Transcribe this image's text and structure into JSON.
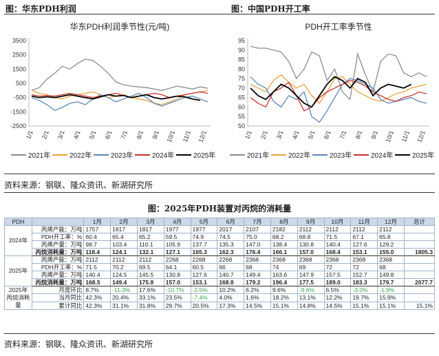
{
  "left_figure": {
    "title": "图：华东PDH利润",
    "source": "资料来源：钢联、隆众资讯、新湖研究所"
  },
  "right_figure": {
    "title": "图：中国PDH开工率"
  },
  "table_title": "图：2025年PDH装置对丙烷的消耗量",
  "bottom_source": "资料来源：钢联、隆众资讯、新湖研究所",
  "colors": {
    "y2021": "#8c8c8c",
    "y2022": "#e8a33a",
    "y2023": "#5b85b8",
    "y2024": "#c8302c",
    "y2025": "#000000"
  },
  "chart_data": [
    {
      "type": "line",
      "title": "华东PDH利润季节性(元/吨)",
      "ylim": [
        -2500,
        3500
      ],
      "yticks": [
        "3500",
        "2500",
        "1500",
        "500",
        "-500",
        "-1500",
        "-2500"
      ],
      "xticks": [
        "1/1",
        "2/1",
        "3/1",
        "4/1",
        "5/1",
        "6/1",
        "7/1",
        "8/1",
        "9/1",
        "10/1",
        "11/1",
        "12/1"
      ],
      "legend": [
        "2021年",
        "2022年",
        "2023年",
        "2024年",
        "2025年"
      ],
      "series": [
        {
          "name": "2021年",
          "values": [
            0,
            200,
            800,
            1200,
            1700,
            1500,
            1900,
            2200,
            2100,
            1700,
            1200,
            600,
            400,
            300,
            250,
            200,
            100,
            0,
            150,
            300,
            200,
            100,
            250,
            150
          ]
        },
        {
          "name": "2022年",
          "values": [
            0,
            -200,
            -300,
            -500,
            -600,
            -400,
            -300,
            -200,
            -100,
            -300,
            -500,
            -400,
            -300,
            -500,
            -600,
            -700,
            -900,
            -1000,
            -800,
            -600,
            -300,
            -200,
            -100,
            0
          ]
        },
        {
          "name": "2023年",
          "values": [
            -500,
            -700,
            -1000,
            -1400,
            -1200,
            -900,
            -800,
            -1000,
            -600,
            -300,
            -500,
            -800,
            -600,
            -400,
            -200,
            -500,
            -900,
            -1100,
            -900,
            -700,
            -500,
            -400,
            -600,
            -800
          ]
        },
        {
          "name": "2024年",
          "values": [
            -300,
            -400,
            -350,
            -400,
            -300,
            -200,
            -300,
            -400,
            -500,
            -400,
            -300,
            -200,
            -350,
            -500,
            -400,
            -300,
            -200,
            -300,
            -500,
            -400,
            -300,
            -200,
            -100,
            -200
          ]
        },
        {
          "name": "2025年",
          "values": [
            -400,
            -500,
            -450,
            -500,
            -400,
            -300,
            -400,
            -500,
            -600,
            -450,
            -300,
            -400,
            -350,
            -500,
            -400,
            -300,
            -500,
            -600,
            -500,
            -400,
            -450,
            -600,
            -700,
            null
          ]
        }
      ]
    },
    {
      "type": "line",
      "title": "PDH开工率季节性",
      "ylim": [
        50,
        95
      ],
      "yticks": [
        "95",
        "90",
        "85",
        "80",
        "75",
        "70",
        "65",
        "60",
        "55",
        "50"
      ],
      "xticks": [
        "1/1",
        "2/1",
        "3/1",
        "4/1",
        "5/1",
        "6/1",
        "7/1",
        "8/1",
        "9/1",
        "10/1",
        "11/1",
        "12/1"
      ],
      "legend": [
        "2021年",
        "2022年",
        "2023年",
        "2024年",
        "2025年"
      ],
      "series": [
        {
          "name": "2021年",
          "values": [
            92,
            91,
            91,
            90,
            89,
            84,
            75,
            80,
            89,
            87,
            74,
            80,
            68,
            64,
            88,
            77,
            68,
            84,
            88,
            87,
            78,
            76,
            78,
            76
          ]
        },
        {
          "name": "2022年",
          "values": [
            72,
            70,
            68,
            74,
            77,
            73,
            70,
            72,
            66,
            62,
            68,
            75,
            76,
            72,
            68,
            66,
            64,
            63,
            65,
            67,
            68,
            70,
            71,
            72
          ]
        },
        {
          "name": "2023年",
          "values": [
            76,
            72,
            70,
            63,
            60,
            66,
            64,
            68,
            55,
            52,
            58,
            65,
            72,
            75,
            74,
            72,
            70,
            64,
            62,
            63,
            64,
            65,
            63,
            62
          ]
        },
        {
          "name": "2024年",
          "values": [
            65,
            62,
            60,
            68,
            70,
            73,
            66,
            58,
            60,
            65,
            68,
            70,
            72,
            74,
            73,
            71,
            68,
            66,
            64,
            63,
            65,
            66,
            68,
            67
          ]
        },
        {
          "name": "2025年",
          "values": [
            70,
            66,
            64,
            68,
            72,
            70,
            66,
            62,
            60,
            66,
            72,
            76,
            74,
            70,
            75,
            73,
            66,
            70,
            72,
            71,
            70,
            72,
            null,
            null
          ]
        }
      ]
    }
  ],
  "table": {
    "header": [
      "PDH",
      "",
      "1月",
      "2月",
      "3月",
      "4月",
      "5月",
      "6月",
      "7月",
      "8月",
      "9月",
      "10月",
      "11月",
      "12月",
      "总计"
    ],
    "groups": [
      {
        "year": "2024年",
        "rows": [
          {
            "label": "丙烯产能：万吨",
            "values": [
              "1757",
              "1817",
              "1817",
              "1977",
              "1977",
              "2017",
              "2107",
              "2182",
              "2112",
              "2112",
              "2112",
              "2112"
            ],
            "total": ""
          },
          {
            "label": "PDH开工率：%",
            "values": [
              "60.4",
              "65.4",
              "65.2",
              "59.5",
              "74.9",
              "74.5",
              "75.0",
              "68.2",
              "68.8",
              "71.5",
              "67.1",
              "65.8"
            ],
            "total": ""
          },
          {
            "label": "丙烯产量：万吨",
            "values": [
              "98.7",
              "103.4",
              "110.1",
              "105.9",
              "137.7",
              "135.3",
              "147.0",
              "138.4",
              "130.8",
              "140.4",
              "127.6",
              "129.2"
            ],
            "total": ""
          },
          {
            "label": "丙烷消耗量：万吨",
            "values": [
              "118.4",
              "124.1",
              "132.1",
              "127.1",
              "165.3",
              "162.3",
              "176.4",
              "166.1",
              "157.0",
              "168.4",
              "153.1",
              "155.0"
            ],
            "total": "1805.3",
            "bold": true
          }
        ]
      },
      {
        "year": "2025年",
        "rows": [
          {
            "label": "丙烯产能：万吨",
            "values": [
              "2112",
              "2112",
              "2112",
              "2268",
              "2268",
              "2268",
              "2368",
              "2368",
              "2368",
              "2368",
              "2368",
              "2368"
            ],
            "total": ""
          },
          {
            "label": "PDH开工率：%",
            "values": [
              "71.5",
              "70.2",
              "69.5",
              "64.1",
              "60.5",
              "66",
              "68",
              "74",
              "69",
              "72",
              "72",
              "68"
            ],
            "total": ""
          },
          {
            "label": "丙烯产量：万吨",
            "values": [
              "140.4",
              "124.5",
              "145.5",
              "130.8",
              "127.6",
              "140.7",
              "149.4",
              "163.6",
              "147.9",
              "157.5",
              "152.7",
              "149.8"
            ],
            "total": ""
          },
          {
            "label": "丙烷消耗量：万吨",
            "values": [
              "168.5",
              "149.4",
              "175.8",
              "157.0",
              "153.1",
              "168.8",
              "179.2",
              "196.4",
              "177.5",
              "189.0",
              "183.3",
              "179.7"
            ],
            "total": "2077.7",
            "bold": true
          }
        ]
      },
      {
        "year": "2025年丙烷消耗量",
        "rows": [
          {
            "label": "月度环比",
            "values": [
              "8.7%",
              "-11.3%",
              "17.6%",
              "-10.7%",
              "-2.5%",
              "10.2%",
              "6.2%",
              "9.6%",
              "-9.6%",
              "6.5%",
              "-3.0%",
              "-1.9%"
            ],
            "total": ""
          },
          {
            "label": "当月同比",
            "values": [
              "42.3%",
              "20.4%",
              "33.1%",
              "23.5%",
              "-7.4%",
              "4.0%",
              "1.6%",
              "18.2%",
              "13.1%",
              "12.2%",
              "19.7%",
              "15.9%"
            ],
            "total": ""
          },
          {
            "label": "累计同比",
            "values": [
              "42.3%",
              "31.1%",
              "31.8%",
              "29.7%",
              "20.5%",
              "17.3%",
              "14.5%",
              "15.1%",
              "14.8%",
              "14.5%",
              "15.1%",
              "15.1%"
            ],
            "total": "15.1%"
          }
        ]
      }
    ]
  }
}
